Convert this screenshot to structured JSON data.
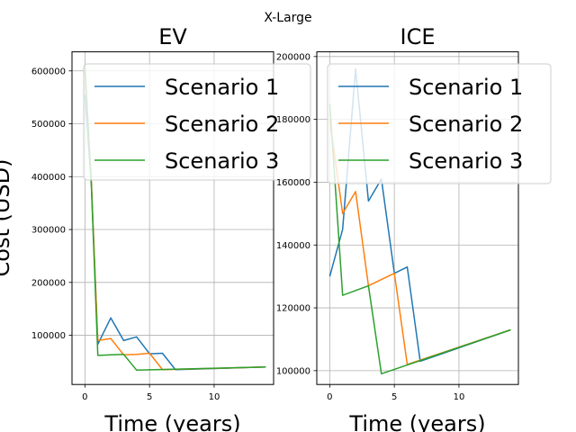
{
  "figure": {
    "suptitle": "X-Large"
  },
  "colors": {
    "scenario_1": "#1f77b4",
    "scenario_2": "#ff7f0e",
    "scenario_3": "#2ca02c",
    "grid": "#b0b0b0"
  },
  "chart_data": [
    {
      "type": "line",
      "title": "EV",
      "xlabel": "Time (years)",
      "ylabel": "Cost (USD)",
      "xlim": [
        -1,
        14.6
      ],
      "ylim": [
        7000,
        636000
      ],
      "xticks": [
        0,
        5,
        10
      ],
      "yticks": [
        100000,
        200000,
        300000,
        400000,
        500000,
        600000
      ],
      "ytick_labels": [
        "100000",
        "200000",
        "300000",
        "400000",
        "500000",
        "600000"
      ],
      "grid": true,
      "legend": {
        "position": "top-right",
        "entries": [
          "Scenario 1",
          "Scenario 2",
          "Scenario 3"
        ]
      },
      "series": [
        {
          "name": "Scenario 1",
          "color": "#1f77b4",
          "x": [
            0,
            0.5,
            1,
            2,
            3,
            4,
            5,
            6,
            7,
            14
          ],
          "y": [
            555000,
            385000,
            83000,
            133000,
            90000,
            97000,
            65000,
            66000,
            35000,
            40000
          ]
        },
        {
          "name": "Scenario 2",
          "color": "#ff7f0e",
          "x": [
            0,
            0.5,
            1,
            2,
            3,
            4,
            5,
            6,
            14
          ],
          "y": [
            600000,
            390000,
            90000,
            94000,
            63000,
            64000,
            66000,
            35000,
            40000
          ]
        },
        {
          "name": "Scenario 3",
          "color": "#2ca02c",
          "x": [
            0,
            0.5,
            1,
            2,
            3,
            4,
            14
          ],
          "y": [
            610000,
            385000,
            62000,
            63000,
            64000,
            34000,
            40000
          ]
        }
      ]
    },
    {
      "type": "line",
      "title": "ICE",
      "xlabel": "Time (years)",
      "ylabel": "",
      "xlim": [
        -1,
        14.6
      ],
      "ylim": [
        95600,
        201500
      ],
      "xticks": [
        0,
        5,
        10
      ],
      "yticks": [
        100000,
        120000,
        140000,
        160000,
        180000,
        200000
      ],
      "ytick_labels": [
        "100000",
        "120000",
        "140000",
        "160000",
        "180000",
        "200000"
      ],
      "grid": true,
      "legend": {
        "position": "top-right",
        "entries": [
          "Scenario 1",
          "Scenario 2",
          "Scenario 3"
        ]
      },
      "series": [
        {
          "name": "Scenario 1",
          "color": "#1f77b4",
          "x": [
            0,
            1,
            2,
            3,
            4,
            5,
            6,
            7,
            14
          ],
          "y": [
            130000,
            145000,
            196000,
            154000,
            161000,
            131000,
            133000,
            103000,
            113000
          ]
        },
        {
          "name": "Scenario 2",
          "color": "#ff7f0e",
          "x": [
            0,
            1,
            2,
            3,
            4,
            5,
            6,
            14
          ],
          "y": [
            180000,
            150000,
            157000,
            127000,
            129000,
            131000,
            102000,
            113000
          ]
        },
        {
          "name": "Scenario 3",
          "color": "#2ca02c",
          "x": [
            0,
            1,
            2,
            3,
            4,
            14
          ],
          "y": [
            185000,
            124000,
            125500,
            127000,
            99000,
            113000
          ]
        }
      ]
    }
  ]
}
